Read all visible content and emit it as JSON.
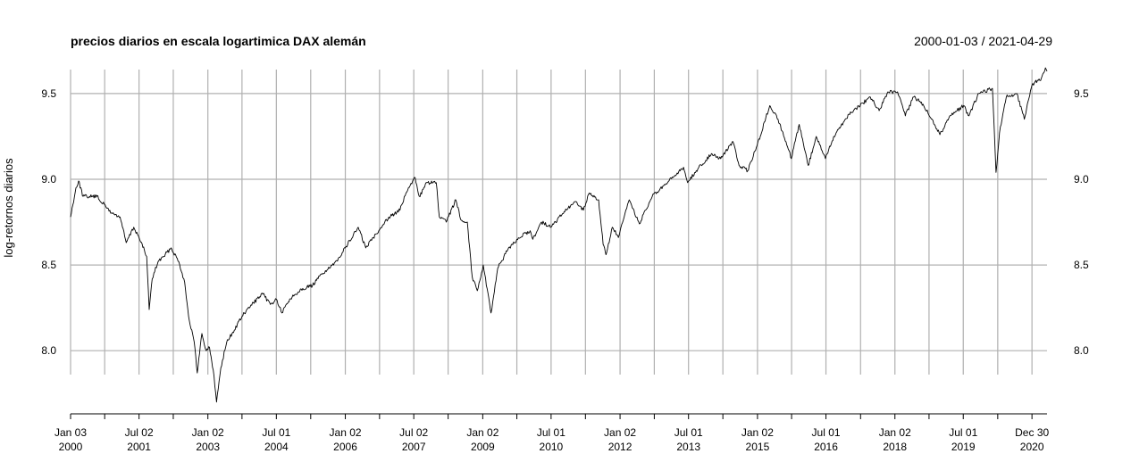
{
  "chart_data": {
    "type": "line",
    "title": "precios diarios en escala logartimica DAX alemán",
    "date_range": "2000-01-03 / 2021-04-29",
    "xlabel": "",
    "ylabel": "log-retornos diarios",
    "xlim": [
      "2000-01-03",
      "2021-04-29"
    ],
    "ylim": [
      7.6,
      9.7
    ],
    "y_ticks": [
      8.0,
      8.5,
      9.0,
      9.5
    ],
    "y_tick_labels": [
      "8.0",
      "8.5",
      "9.0",
      "9.5"
    ],
    "x_ticks": [
      {
        "date": "2000-01-03",
        "label": [
          "Jan 03",
          "2000"
        ]
      },
      {
        "date": "2000-10-01",
        "label": null
      },
      {
        "date": "2001-07-02",
        "label": [
          "Jul 02",
          "2001"
        ]
      },
      {
        "date": "2002-04-01",
        "label": null
      },
      {
        "date": "2003-01-02",
        "label": [
          "Jan 02",
          "2003"
        ]
      },
      {
        "date": "2003-10-01",
        "label": null
      },
      {
        "date": "2004-07-01",
        "label": [
          "Jul 01",
          "2004"
        ]
      },
      {
        "date": "2005-04-01",
        "label": null
      },
      {
        "date": "2006-01-02",
        "label": [
          "Jan 02",
          "2006"
        ]
      },
      {
        "date": "2006-10-02",
        "label": null
      },
      {
        "date": "2007-07-02",
        "label": [
          "Jul 02",
          "2007"
        ]
      },
      {
        "date": "2008-04-01",
        "label": null
      },
      {
        "date": "2009-01-02",
        "label": [
          "Jan 02",
          "2009"
        ]
      },
      {
        "date": "2009-10-01",
        "label": null
      },
      {
        "date": "2010-07-01",
        "label": [
          "Jul 01",
          "2010"
        ]
      },
      {
        "date": "2011-04-01",
        "label": null
      },
      {
        "date": "2012-01-02",
        "label": [
          "Jan 02",
          "2012"
        ]
      },
      {
        "date": "2012-10-01",
        "label": null
      },
      {
        "date": "2013-07-01",
        "label": [
          "Jul 01",
          "2013"
        ]
      },
      {
        "date": "2014-04-01",
        "label": null
      },
      {
        "date": "2015-01-02",
        "label": [
          "Jan 02",
          "2015"
        ]
      },
      {
        "date": "2015-10-01",
        "label": null
      },
      {
        "date": "2016-07-01",
        "label": [
          "Jul 01",
          "2016"
        ]
      },
      {
        "date": "2017-04-03",
        "label": null
      },
      {
        "date": "2018-01-02",
        "label": [
          "Jan 02",
          "2018"
        ]
      },
      {
        "date": "2018-10-01",
        "label": null
      },
      {
        "date": "2019-07-01",
        "label": [
          "Jul 01",
          "2019"
        ]
      },
      {
        "date": "2020-04-01",
        "label": null
      },
      {
        "date": "2020-12-30",
        "label": [
          "Dec 30",
          "2020"
        ]
      }
    ],
    "grid": true,
    "series": [
      {
        "color": "#000000",
        "points": [
          [
            "2000-01-03",
            8.78
          ],
          [
            "2000-02-15",
            8.95
          ],
          [
            "2000-03-07",
            8.99
          ],
          [
            "2000-04-12",
            8.9
          ],
          [
            "2000-06-01",
            8.9
          ],
          [
            "2000-08-01",
            8.9
          ],
          [
            "2000-10-10",
            8.84
          ],
          [
            "2000-12-01",
            8.8
          ],
          [
            "2001-02-01",
            8.78
          ],
          [
            "2001-03-22",
            8.63
          ],
          [
            "2001-05-21",
            8.72
          ],
          [
            "2001-07-02",
            8.66
          ],
          [
            "2001-09-01",
            8.55
          ],
          [
            "2001-09-21",
            8.24
          ],
          [
            "2001-10-15",
            8.42
          ],
          [
            "2001-12-01",
            8.52
          ],
          [
            "2002-01-15",
            8.55
          ],
          [
            "2002-03-15",
            8.6
          ],
          [
            "2002-05-15",
            8.52
          ],
          [
            "2002-07-01",
            8.4
          ],
          [
            "2002-08-01",
            8.2
          ],
          [
            "2002-09-15",
            8.05
          ],
          [
            "2002-10-09",
            7.87
          ],
          [
            "2002-11-15",
            8.1
          ],
          [
            "2002-12-20",
            8.0
          ],
          [
            "2003-01-15",
            8.02
          ],
          [
            "2003-02-20",
            7.85
          ],
          [
            "2003-03-12",
            7.7
          ],
          [
            "2003-04-15",
            7.9
          ],
          [
            "2003-06-01",
            8.05
          ],
          [
            "2003-08-01",
            8.12
          ],
          [
            "2003-10-01",
            8.2
          ],
          [
            "2003-12-31",
            8.28
          ],
          [
            "2004-03-15",
            8.33
          ],
          [
            "2004-05-15",
            8.27
          ],
          [
            "2004-07-01",
            8.3
          ],
          [
            "2004-08-15",
            8.22
          ],
          [
            "2004-10-15",
            8.3
          ],
          [
            "2005-01-15",
            8.36
          ],
          [
            "2005-04-15",
            8.38
          ],
          [
            "2005-07-01",
            8.45
          ],
          [
            "2005-10-01",
            8.5
          ],
          [
            "2006-01-02",
            8.6
          ],
          [
            "2006-04-15",
            8.72
          ],
          [
            "2006-06-14",
            8.6
          ],
          [
            "2006-09-01",
            8.68
          ],
          [
            "2006-12-15",
            8.78
          ],
          [
            "2007-03-14",
            8.82
          ],
          [
            "2007-05-01",
            8.92
          ],
          [
            "2007-07-13",
            9.01
          ],
          [
            "2007-08-15",
            8.9
          ],
          [
            "2007-10-15",
            8.98
          ],
          [
            "2007-12-28",
            8.98
          ],
          [
            "2008-01-22",
            8.78
          ],
          [
            "2008-03-17",
            8.75
          ],
          [
            "2008-06-01",
            8.88
          ],
          [
            "2008-07-15",
            8.76
          ],
          [
            "2008-09-01",
            8.75
          ],
          [
            "2008-10-10",
            8.43
          ],
          [
            "2008-11-20",
            8.35
          ],
          [
            "2009-01-06",
            8.5
          ],
          [
            "2009-03-09",
            8.22
          ],
          [
            "2009-05-01",
            8.48
          ],
          [
            "2009-07-15",
            8.58
          ],
          [
            "2009-10-01",
            8.65
          ],
          [
            "2010-01-15",
            8.7
          ],
          [
            "2010-02-05",
            8.65
          ],
          [
            "2010-04-15",
            8.75
          ],
          [
            "2010-07-01",
            8.72
          ],
          [
            "2010-10-01",
            8.8
          ],
          [
            "2011-01-15",
            8.87
          ],
          [
            "2011-03-16",
            8.82
          ],
          [
            "2011-05-02",
            8.92
          ],
          [
            "2011-07-15",
            8.88
          ],
          [
            "2011-08-20",
            8.62
          ],
          [
            "2011-09-12",
            8.56
          ],
          [
            "2011-11-01",
            8.72
          ],
          [
            "2011-12-20",
            8.66
          ],
          [
            "2012-03-15",
            8.88
          ],
          [
            "2012-06-04",
            8.74
          ],
          [
            "2012-09-15",
            8.9
          ],
          [
            "2013-01-15",
            8.98
          ],
          [
            "2013-05-22",
            9.07
          ],
          [
            "2013-06-24",
            8.98
          ],
          [
            "2013-09-01",
            9.05
          ],
          [
            "2013-12-31",
            9.15
          ],
          [
            "2014-03-15",
            9.12
          ],
          [
            "2014-06-20",
            9.22
          ],
          [
            "2014-08-08",
            9.08
          ],
          [
            "2014-10-16",
            9.05
          ],
          [
            "2014-12-31",
            9.2
          ],
          [
            "2015-04-10",
            9.43
          ],
          [
            "2015-06-15",
            9.35
          ],
          [
            "2015-08-24",
            9.2
          ],
          [
            "2015-09-29",
            9.12
          ],
          [
            "2015-12-01",
            9.32
          ],
          [
            "2016-02-11",
            9.08
          ],
          [
            "2016-04-15",
            9.25
          ],
          [
            "2016-06-27",
            9.12
          ],
          [
            "2016-09-01",
            9.25
          ],
          [
            "2016-12-31",
            9.38
          ],
          [
            "2017-06-20",
            9.48
          ],
          [
            "2017-08-29",
            9.4
          ],
          [
            "2017-11-07",
            9.51
          ],
          [
            "2018-01-23",
            9.51
          ],
          [
            "2018-03-26",
            9.37
          ],
          [
            "2018-06-01",
            9.48
          ],
          [
            "2018-08-01",
            9.45
          ],
          [
            "2018-10-26",
            9.35
          ],
          [
            "2018-12-27",
            9.26
          ],
          [
            "2019-03-15",
            9.37
          ],
          [
            "2019-07-04",
            9.43
          ],
          [
            "2019-08-15",
            9.37
          ],
          [
            "2019-11-01",
            9.5
          ],
          [
            "2020-02-19",
            9.53
          ],
          [
            "2020-03-18",
            9.04
          ],
          [
            "2020-04-15",
            9.27
          ],
          [
            "2020-06-08",
            9.48
          ],
          [
            "2020-09-01",
            9.5
          ],
          [
            "2020-10-30",
            9.35
          ],
          [
            "2020-12-30",
            9.55
          ],
          [
            "2021-03-15",
            9.59
          ],
          [
            "2021-04-16",
            9.65
          ],
          [
            "2021-04-29",
            9.63
          ]
        ]
      }
    ]
  }
}
